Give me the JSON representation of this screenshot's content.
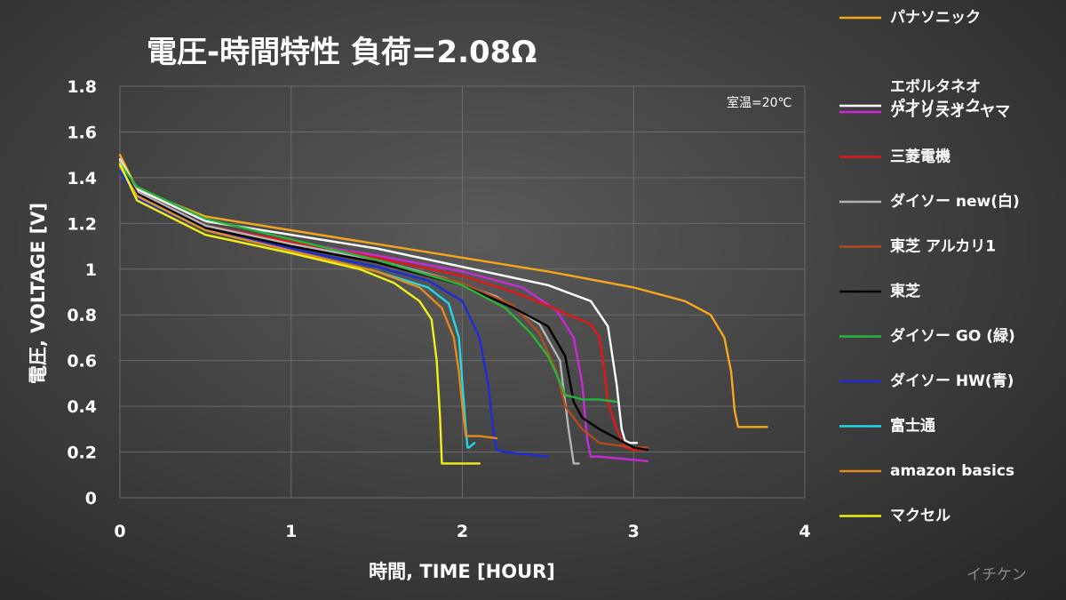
{
  "chart_data": {
    "type": "line",
    "title": "電圧-時間特性 負荷=2.08Ω",
    "xlabel": "時間, TIME [HOUR]",
    "ylabel": "電圧, VOLTAGE [V]",
    "xlim": [
      0,
      4
    ],
    "ylim": [
      0,
      1.8
    ],
    "x_ticks": [
      "0",
      "1",
      "2",
      "3",
      "4"
    ],
    "y_ticks": [
      "0",
      "0.2",
      "0.4",
      "0.6",
      "0.8",
      "1",
      "1.2",
      "1.4",
      "1.6",
      "1.8"
    ],
    "grid": true,
    "legend_position": "right",
    "annotation": "室温=20℃",
    "watermark": "イチケン",
    "series": [
      {
        "name": "パナソニック",
        "color": "#F5A81C",
        "x": [
          0,
          0.1,
          0.5,
          1.0,
          1.5,
          2.0,
          2.5,
          3.0,
          3.3,
          3.45,
          3.53,
          3.57,
          3.59,
          3.61,
          3.65,
          3.7,
          3.78
        ],
        "y": [
          1.5,
          1.35,
          1.23,
          1.17,
          1.11,
          1.05,
          0.99,
          0.92,
          0.86,
          0.8,
          0.7,
          0.55,
          0.38,
          0.31,
          0.31,
          0.31,
          0.31
        ]
      },
      {
        "name": "エボルタネオ パナソニック",
        "color": "#FFFFFF",
        "x": [
          0,
          0.1,
          0.5,
          1.0,
          1.5,
          2.0,
          2.5,
          2.75,
          2.85,
          2.9,
          2.93,
          2.95,
          2.98,
          3.02
        ],
        "y": [
          1.48,
          1.35,
          1.21,
          1.15,
          1.09,
          1.01,
          0.93,
          0.86,
          0.75,
          0.5,
          0.3,
          0.25,
          0.24,
          0.24
        ]
      },
      {
        "name": "アイリスオーヤマ",
        "color": "#C72AD6",
        "x": [
          0,
          0.1,
          0.5,
          1.0,
          1.5,
          2.0,
          2.35,
          2.55,
          2.65,
          2.7,
          2.73,
          2.75,
          2.8,
          3.08
        ],
        "y": [
          1.46,
          1.34,
          1.19,
          1.12,
          1.06,
          0.99,
          0.92,
          0.82,
          0.7,
          0.5,
          0.25,
          0.18,
          0.18,
          0.16
        ]
      },
      {
        "name": "三菱電機",
        "color": "#E01818",
        "x": [
          0,
          0.1,
          0.5,
          1.0,
          1.5,
          2.0,
          2.3,
          2.5,
          2.65,
          2.75,
          2.8,
          2.83,
          2.85,
          2.9,
          2.95,
          3.0,
          3.08
        ],
        "y": [
          1.46,
          1.33,
          1.19,
          1.12,
          1.05,
          0.97,
          0.9,
          0.84,
          0.79,
          0.76,
          0.7,
          0.55,
          0.42,
          0.3,
          0.22,
          0.21,
          0.21
        ]
      },
      {
        "name": "ダイソー new(白)",
        "color": "#B4B4B4",
        "x": [
          0,
          0.1,
          0.5,
          1.0,
          1.5,
          1.9,
          2.2,
          2.45,
          2.57,
          2.62,
          2.65,
          2.68
        ],
        "y": [
          1.47,
          1.34,
          1.19,
          1.11,
          1.04,
          0.96,
          0.88,
          0.76,
          0.6,
          0.3,
          0.15,
          0.15
        ]
      },
      {
        "name": "東芝 アルカリ1",
        "color": "#B34A1E",
        "x": [
          0,
          0.1,
          0.5,
          1.0,
          1.5,
          2.0,
          2.3,
          2.45,
          2.55,
          2.6,
          2.7,
          2.8,
          3.0,
          3.08
        ],
        "y": [
          1.46,
          1.32,
          1.18,
          1.1,
          1.03,
          0.94,
          0.84,
          0.72,
          0.55,
          0.4,
          0.3,
          0.24,
          0.22,
          0.22
        ]
      },
      {
        "name": "東芝",
        "color": "#000000",
        "x": [
          0,
          0.1,
          0.5,
          1.0,
          1.5,
          2.0,
          2.3,
          2.5,
          2.6,
          2.65,
          2.7,
          2.8,
          2.9,
          3.0,
          3.08
        ],
        "y": [
          1.46,
          1.33,
          1.18,
          1.1,
          1.03,
          0.93,
          0.83,
          0.75,
          0.62,
          0.42,
          0.35,
          0.3,
          0.26,
          0.22,
          0.21
        ]
      },
      {
        "name": "ダイソー GO (緑)",
        "color": "#27B53B",
        "x": [
          0,
          0.1,
          0.5,
          1.0,
          1.5,
          2.0,
          2.25,
          2.4,
          2.5,
          2.55,
          2.6,
          2.7,
          2.8,
          2.9
        ],
        "y": [
          1.46,
          1.36,
          1.22,
          1.13,
          1.04,
          0.93,
          0.83,
          0.72,
          0.62,
          0.54,
          0.45,
          0.43,
          0.43,
          0.42
        ]
      },
      {
        "name": "ダイソー HW(青)",
        "color": "#1E2BD8",
        "x": [
          0,
          0.1,
          0.5,
          1.0,
          1.5,
          1.8,
          2.0,
          2.1,
          2.15,
          2.18,
          2.2,
          2.25,
          2.5
        ],
        "y": [
          1.43,
          1.31,
          1.17,
          1.09,
          1.01,
          0.95,
          0.86,
          0.7,
          0.5,
          0.3,
          0.21,
          0.2,
          0.18
        ]
      },
      {
        "name": "富士通",
        "color": "#20D8E6",
        "x": [
          0,
          0.1,
          0.5,
          1.0,
          1.5,
          1.8,
          1.92,
          1.98,
          2.0,
          2.02,
          2.03,
          2.04,
          2.07
        ],
        "y": [
          1.45,
          1.32,
          1.17,
          1.08,
          0.99,
          0.92,
          0.85,
          0.7,
          0.5,
          0.3,
          0.22,
          0.22,
          0.24
        ]
      },
      {
        "name": "amazon basics",
        "color": "#E38A1F",
        "x": [
          0,
          0.1,
          0.5,
          1.0,
          1.5,
          1.75,
          1.88,
          1.95,
          1.98,
          2.0,
          2.02,
          2.05,
          2.1,
          2.2
        ],
        "y": [
          1.45,
          1.32,
          1.17,
          1.08,
          0.99,
          0.92,
          0.83,
          0.7,
          0.55,
          0.4,
          0.27,
          0.27,
          0.27,
          0.26
        ]
      },
      {
        "name": "マクセル",
        "color": "#F0F019",
        "x": [
          0,
          0.1,
          0.5,
          1.0,
          1.4,
          1.6,
          1.75,
          1.82,
          1.85,
          1.87,
          1.88,
          1.9,
          2.1
        ],
        "y": [
          1.46,
          1.3,
          1.15,
          1.07,
          1.0,
          0.94,
          0.86,
          0.78,
          0.6,
          0.35,
          0.15,
          0.15,
          0.15
        ]
      }
    ]
  }
}
